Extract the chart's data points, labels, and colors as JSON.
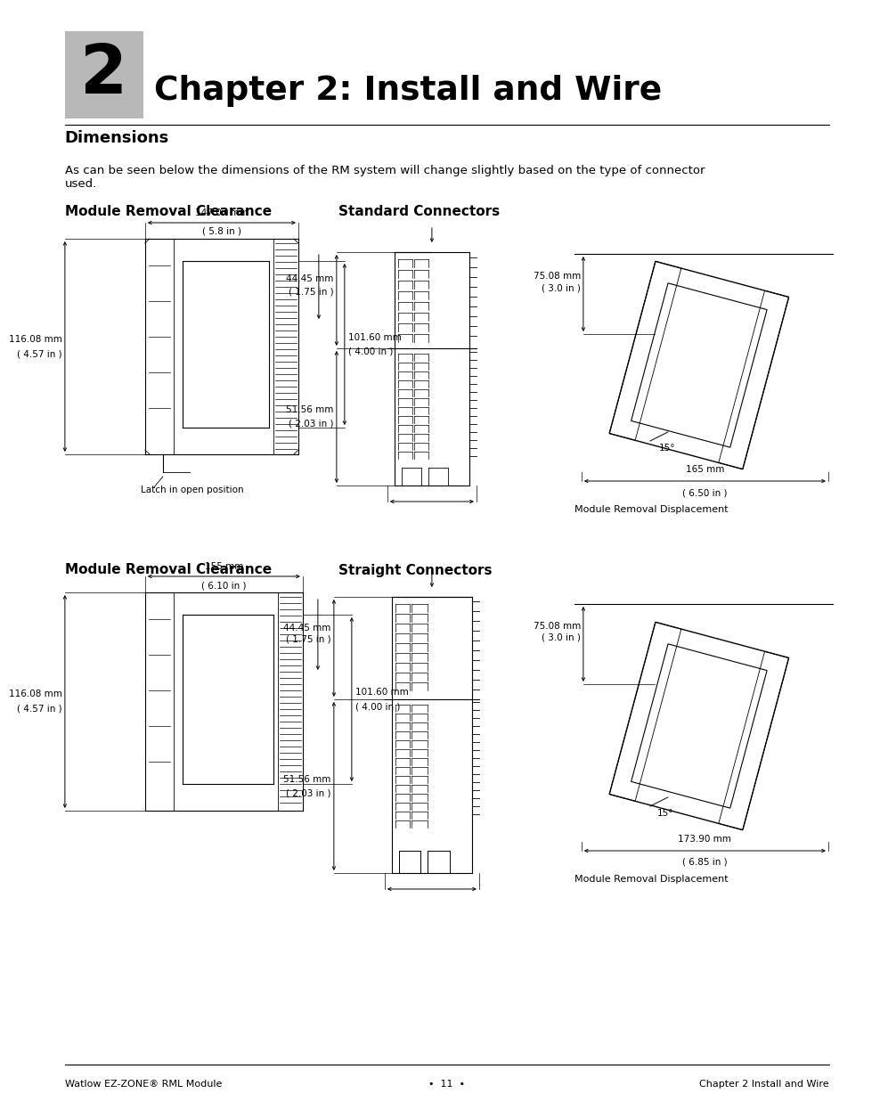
{
  "page_bg": "#ffffff",
  "chapter_num": "2",
  "chapter_num_bg": "#b8b8b8",
  "chapter_title": "Chapter 2: Install and Wire",
  "section_title": "Dimensions",
  "body_text": "As can be seen below the dimensions of the RM system will change slightly based on the type of connector\nused.",
  "section1_title": "Module Removal Clearance",
  "section2_title": "Standard Connectors",
  "section3_title": "Module Removal Clearance",
  "section4_title": "Straight Connectors",
  "footer_left": "Watlow EZ-ZONE® RML Module",
  "footer_center": "•  11  •",
  "footer_right": "Chapter 2 Install and Wire",
  "top_left": {
    "width_mm": "147.07 mm",
    "width_in": "( 5.8 in )",
    "height_mm": "116.08 mm",
    "height_in": "( 4.57 in )",
    "depth_mm": "101.60 mm",
    "depth_in": "( 4.00 in )",
    "latch_label": "Latch in open position"
  },
  "top_center": {
    "h1_mm": "44.45 mm",
    "h1_in": "( 1.75 in )",
    "h2_mm": "51.56 mm",
    "h2_in": "( 2.03 in )"
  },
  "top_right": {
    "w_mm": "75.08 mm",
    "w_in": "( 3.0 in )",
    "angle": "15°",
    "disp_mm": "165 mm",
    "disp_in": "( 6.50 in )",
    "label": "Module Removal Displacement"
  },
  "bot_left": {
    "width_mm": "155 mm",
    "width_in": "( 6.10 in )",
    "height_mm": "116.08 mm",
    "height_in": "( 4.57 in )",
    "depth_mm": "101.60 mm",
    "depth_in": "( 4.00 in )"
  },
  "bot_center": {
    "h1_mm": "44.45 mm",
    "h1_in": "( 1.75 in )",
    "h2_mm": "51.56 mm",
    "h2_in": "( 2.03 in )"
  },
  "bot_right": {
    "w_mm": "75.08 mm",
    "w_in": "( 3.0 in )",
    "angle": "15°",
    "disp_mm": "173.90 mm",
    "disp_in": "( 6.85 in )",
    "label": "Module Removal Displacement"
  }
}
